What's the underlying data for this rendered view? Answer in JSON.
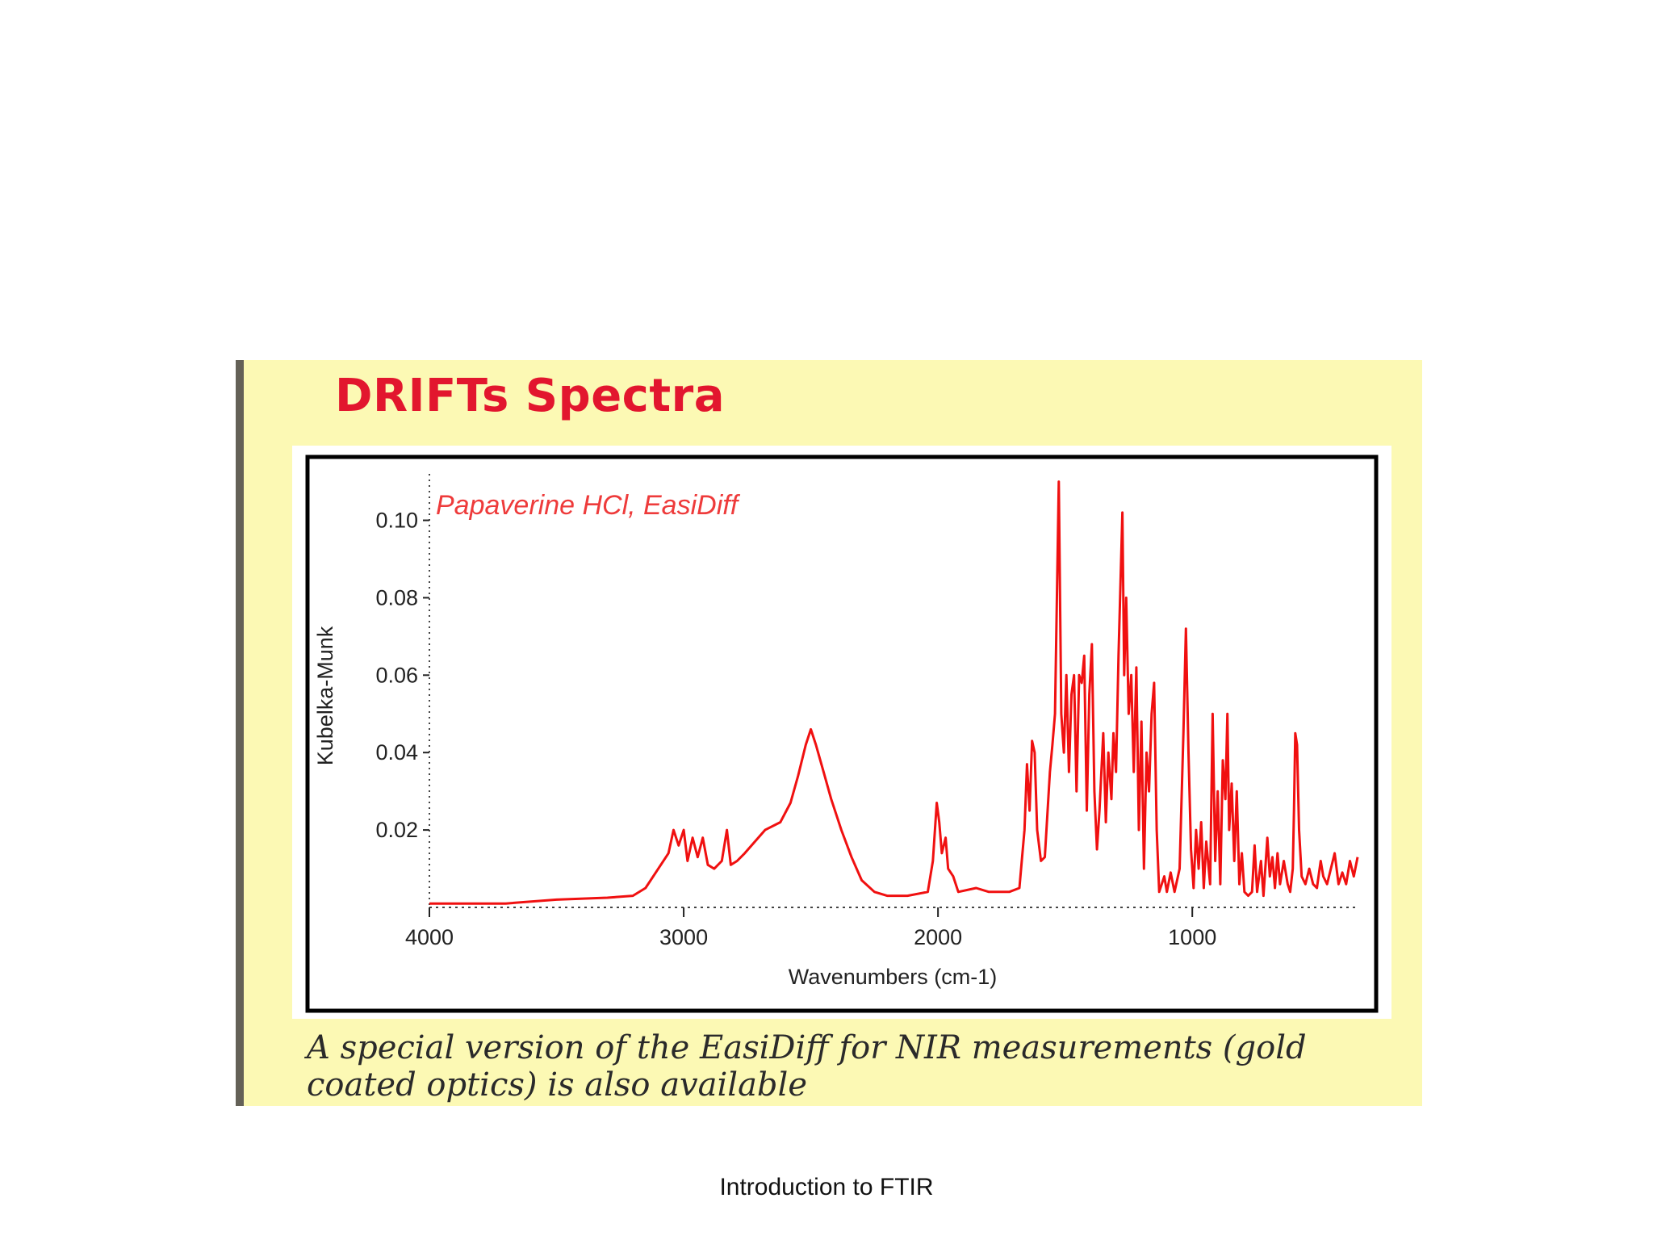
{
  "slide": {
    "title": "DRIFTs Spectra",
    "caption": "A special version of the EasiDiff for NIR measurements (gold coated optics) is also available",
    "footer": "Introduction to FTIR"
  },
  "colors": {
    "panel_bg": "#fcf9b4",
    "title": "#e2162e",
    "spectrum": "#f01010",
    "left_bar": "#646157"
  },
  "chart_data": {
    "type": "line",
    "title": "",
    "annotation": "Papaverine HCl, EasiDiff",
    "xlabel": "Wavenumbers (cm-1)",
    "ylabel": "Kubelka-Munk",
    "xlim": [
      4000,
      350
    ],
    "ylim": [
      0,
      0.112
    ],
    "x_ticks": [
      4000,
      3000,
      2000,
      1000
    ],
    "x_tick_labels": [
      "4000",
      "3000",
      "2000",
      "1000"
    ],
    "y_ticks": [
      0.02,
      0.04,
      0.06,
      0.08,
      0.1
    ],
    "y_tick_labels": [
      "0.02",
      "0.04",
      "0.06",
      "0.08",
      "0.10"
    ],
    "grid": false,
    "series": [
      {
        "values": [
          [
            4000,
            0.001
          ],
          [
            3700,
            0.001
          ],
          [
            3500,
            0.002
          ],
          [
            3300,
            0.0025
          ],
          [
            3200,
            0.003
          ],
          [
            3150,
            0.005
          ],
          [
            3100,
            0.01
          ],
          [
            3060,
            0.014
          ],
          [
            3040,
            0.02
          ],
          [
            3020,
            0.016
          ],
          [
            3000,
            0.02
          ],
          [
            2985,
            0.012
          ],
          [
            2965,
            0.018
          ],
          [
            2945,
            0.013
          ],
          [
            2925,
            0.018
          ],
          [
            2905,
            0.011
          ],
          [
            2880,
            0.01
          ],
          [
            2850,
            0.012
          ],
          [
            2830,
            0.02
          ],
          [
            2815,
            0.011
          ],
          [
            2790,
            0.012
          ],
          [
            2760,
            0.014
          ],
          [
            2720,
            0.017
          ],
          [
            2680,
            0.02
          ],
          [
            2620,
            0.022
          ],
          [
            2580,
            0.027
          ],
          [
            2550,
            0.034
          ],
          [
            2520,
            0.042
          ],
          [
            2500,
            0.046
          ],
          [
            2480,
            0.042
          ],
          [
            2450,
            0.035
          ],
          [
            2420,
            0.028
          ],
          [
            2380,
            0.02
          ],
          [
            2340,
            0.013
          ],
          [
            2300,
            0.007
          ],
          [
            2250,
            0.004
          ],
          [
            2200,
            0.003
          ],
          [
            2120,
            0.003
          ],
          [
            2040,
            0.004
          ],
          [
            2020,
            0.012
          ],
          [
            2005,
            0.027
          ],
          [
            1995,
            0.022
          ],
          [
            1985,
            0.014
          ],
          [
            1970,
            0.018
          ],
          [
            1960,
            0.01
          ],
          [
            1940,
            0.008
          ],
          [
            1920,
            0.004
          ],
          [
            1850,
            0.005
          ],
          [
            1800,
            0.004
          ],
          [
            1720,
            0.004
          ],
          [
            1680,
            0.005
          ],
          [
            1660,
            0.02
          ],
          [
            1650,
            0.037
          ],
          [
            1640,
            0.025
          ],
          [
            1630,
            0.043
          ],
          [
            1620,
            0.04
          ],
          [
            1610,
            0.02
          ],
          [
            1595,
            0.012
          ],
          [
            1580,
            0.013
          ],
          [
            1560,
            0.035
          ],
          [
            1550,
            0.042
          ],
          [
            1540,
            0.05
          ],
          [
            1525,
            0.11
          ],
          [
            1515,
            0.05
          ],
          [
            1505,
            0.04
          ],
          [
            1495,
            0.06
          ],
          [
            1485,
            0.035
          ],
          [
            1475,
            0.055
          ],
          [
            1465,
            0.06
          ],
          [
            1455,
            0.03
          ],
          [
            1445,
            0.06
          ],
          [
            1435,
            0.058
          ],
          [
            1425,
            0.065
          ],
          [
            1415,
            0.025
          ],
          [
            1405,
            0.055
          ],
          [
            1395,
            0.068
          ],
          [
            1385,
            0.03
          ],
          [
            1375,
            0.015
          ],
          [
            1365,
            0.025
          ],
          [
            1350,
            0.045
          ],
          [
            1340,
            0.022
          ],
          [
            1330,
            0.04
          ],
          [
            1318,
            0.028
          ],
          [
            1310,
            0.045
          ],
          [
            1300,
            0.035
          ],
          [
            1290,
            0.065
          ],
          [
            1282,
            0.085
          ],
          [
            1275,
            0.102
          ],
          [
            1268,
            0.06
          ],
          [
            1260,
            0.08
          ],
          [
            1250,
            0.05
          ],
          [
            1240,
            0.06
          ],
          [
            1230,
            0.035
          ],
          [
            1220,
            0.062
          ],
          [
            1210,
            0.02
          ],
          [
            1200,
            0.048
          ],
          [
            1190,
            0.01
          ],
          [
            1180,
            0.04
          ],
          [
            1170,
            0.03
          ],
          [
            1160,
            0.05
          ],
          [
            1150,
            0.058
          ],
          [
            1140,
            0.02
          ],
          [
            1130,
            0.004
          ],
          [
            1110,
            0.008
          ],
          [
            1100,
            0.004
          ],
          [
            1085,
            0.009
          ],
          [
            1070,
            0.004
          ],
          [
            1050,
            0.01
          ],
          [
            1035,
            0.045
          ],
          [
            1025,
            0.072
          ],
          [
            1015,
            0.04
          ],
          [
            1005,
            0.015
          ],
          [
            995,
            0.005
          ],
          [
            985,
            0.02
          ],
          [
            975,
            0.01
          ],
          [
            965,
            0.022
          ],
          [
            955,
            0.005
          ],
          [
            945,
            0.017
          ],
          [
            930,
            0.006
          ],
          [
            920,
            0.05
          ],
          [
            910,
            0.012
          ],
          [
            900,
            0.03
          ],
          [
            890,
            0.006
          ],
          [
            880,
            0.038
          ],
          [
            870,
            0.028
          ],
          [
            862,
            0.05
          ],
          [
            855,
            0.02
          ],
          [
            845,
            0.032
          ],
          [
            835,
            0.012
          ],
          [
            825,
            0.03
          ],
          [
            815,
            0.006
          ],
          [
            805,
            0.014
          ],
          [
            795,
            0.004
          ],
          [
            780,
            0.003
          ],
          [
            765,
            0.004
          ],
          [
            755,
            0.016
          ],
          [
            745,
            0.004
          ],
          [
            730,
            0.012
          ],
          [
            720,
            0.003
          ],
          [
            705,
            0.018
          ],
          [
            695,
            0.008
          ],
          [
            685,
            0.013
          ],
          [
            675,
            0.005
          ],
          [
            665,
            0.014
          ],
          [
            655,
            0.006
          ],
          [
            640,
            0.012
          ],
          [
            625,
            0.006
          ],
          [
            615,
            0.004
          ],
          [
            605,
            0.01
          ],
          [
            600,
            0.025
          ],
          [
            595,
            0.045
          ],
          [
            588,
            0.042
          ],
          [
            580,
            0.02
          ],
          [
            570,
            0.008
          ],
          [
            555,
            0.006
          ],
          [
            540,
            0.01
          ],
          [
            525,
            0.006
          ],
          [
            510,
            0.005
          ],
          [
            495,
            0.012
          ],
          [
            485,
            0.008
          ],
          [
            470,
            0.006
          ],
          [
            455,
            0.01
          ],
          [
            440,
            0.014
          ],
          [
            425,
            0.006
          ],
          [
            410,
            0.009
          ],
          [
            395,
            0.006
          ],
          [
            380,
            0.012
          ],
          [
            365,
            0.008
          ],
          [
            350,
            0.013
          ]
        ]
      }
    ]
  }
}
